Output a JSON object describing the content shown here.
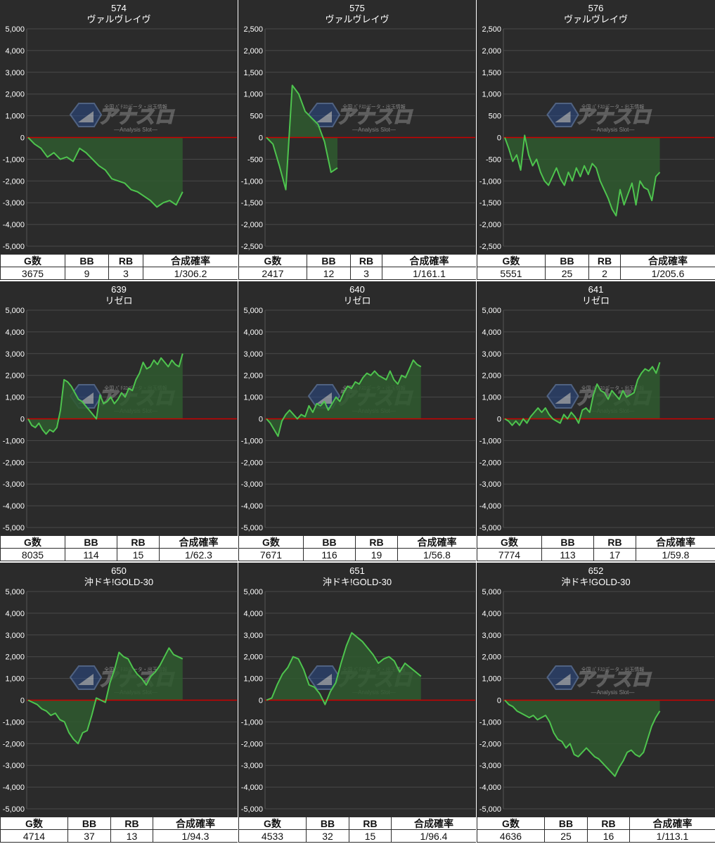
{
  "headers": [
    "G数",
    "BB",
    "RB",
    "合成確率"
  ],
  "watermark": {
    "brand": "アナスロ",
    "sub": "—Analysis Slot—",
    "top": "全国 ﾊﾟﾁｽﾛデータ・出玉情報"
  },
  "colors": {
    "background": "#2b2b2b",
    "line": "#4ec44e",
    "fill": "#2f5a2f",
    "zero_line": "#cc0000",
    "grid": "#4a4a4a"
  },
  "chart_data": [
    {
      "type": "area",
      "number": "574",
      "title": "ヴァルヴレイヴ",
      "ylim": [
        -5000,
        5000
      ],
      "yticks": [
        "5,000",
        "4,000",
        "3,000",
        "2,000",
        "1,000",
        "0",
        "-1,000",
        "-2,000",
        "-3,000",
        "-4,000",
        "-5,000"
      ],
      "values": [
        0,
        -300,
        -500,
        -900,
        -700,
        -1000,
        -900,
        -1100,
        -500,
        -700,
        -1000,
        -1300,
        -1500,
        -1900,
        -2000,
        -2100,
        -2400,
        -2500,
        -2700,
        -2900,
        -3200,
        -3000,
        -2900,
        -3100,
        -2500
      ],
      "stats": {
        "games": "3675",
        "bb": "9",
        "rb": "3",
        "prob": "1/306.2"
      }
    },
    {
      "type": "area",
      "number": "575",
      "title": "ヴァルヴレイヴ",
      "ylim": [
        -2500,
        2500
      ],
      "yticks": [
        "2,500",
        "2,000",
        "1,500",
        "1,000",
        "500",
        "0",
        "-500",
        "-1,000",
        "-1,500",
        "-2,000",
        "-2,500"
      ],
      "values": [
        0,
        -150,
        -650,
        -1200,
        1200,
        1000,
        600,
        450,
        300,
        -100,
        -800,
        -700
      ],
      "stats": {
        "games": "2417",
        "bb": "12",
        "rb": "3",
        "prob": "1/161.1"
      }
    },
    {
      "type": "area",
      "number": "576",
      "title": "ヴァルヴレイヴ",
      "ylim": [
        -2500,
        2500
      ],
      "yticks": [
        "2,500",
        "2,000",
        "1,500",
        "1,000",
        "500",
        "0",
        "-500",
        "-1,000",
        "-1,500",
        "-2,000",
        "-2,500"
      ],
      "values": [
        0,
        -250,
        -550,
        -400,
        -750,
        50,
        -400,
        -650,
        -500,
        -800,
        -1000,
        -1100,
        -900,
        -700,
        -950,
        -1100,
        -800,
        -1000,
        -700,
        -900,
        -650,
        -850,
        -600,
        -700,
        -1000,
        -1200,
        -1400,
        -1650,
        -1800,
        -1200,
        -1550,
        -1300,
        -1050,
        -1550,
        -1000,
        -1150,
        -1200,
        -1450,
        -900,
        -800
      ],
      "stats": {
        "games": "5551",
        "bb": "25",
        "rb": "2",
        "prob": "1/205.6"
      }
    },
    {
      "type": "area",
      "number": "639",
      "title": "リゼロ",
      "ylim": [
        -5000,
        5000
      ],
      "yticks": [
        "5,000",
        "4,000",
        "3,000",
        "2,000",
        "1,000",
        "0",
        "-1,000",
        "-2,000",
        "-3,000",
        "-4,000",
        "-5,000"
      ],
      "values": [
        0,
        -300,
        -400,
        -200,
        -500,
        -700,
        -500,
        -600,
        -400,
        400,
        1800,
        1700,
        1500,
        1200,
        900,
        800,
        600,
        400,
        200,
        0,
        1100,
        700,
        800,
        1000,
        700,
        900,
        1200,
        1000,
        1400,
        1300,
        1800,
        2100,
        2600,
        2300,
        2400,
        2700,
        2500,
        2800,
        2600,
        2400,
        2700,
        2500,
        2400,
        3000
      ],
      "stats": {
        "games": "8035",
        "bb": "114",
        "rb": "15",
        "prob": "1/62.3"
      }
    },
    {
      "type": "area",
      "number": "640",
      "title": "リゼロ",
      "ylim": [
        -5000,
        5000
      ],
      "yticks": [
        "5,000",
        "4,000",
        "3,000",
        "2,000",
        "1,000",
        "0",
        "-1,000",
        "-2,000",
        "-3,000",
        "-4,000",
        "-5,000"
      ],
      "values": [
        0,
        -200,
        -500,
        -800,
        -100,
        200,
        400,
        200,
        0,
        200,
        100,
        600,
        300,
        700,
        600,
        800,
        400,
        700,
        1000,
        800,
        1200,
        1500,
        1400,
        1700,
        1600,
        1900,
        2100,
        2000,
        2200,
        2000,
        1900,
        1800,
        2200,
        1800,
        1600,
        2000,
        1900,
        2300,
        2700,
        2500,
        2400
      ],
      "stats": {
        "games": "7671",
        "bb": "116",
        "rb": "19",
        "prob": "1/56.8"
      }
    },
    {
      "type": "area",
      "number": "641",
      "title": "リゼロ",
      "ylim": [
        -5000,
        5000
      ],
      "yticks": [
        "5,000",
        "4,000",
        "3,000",
        "2,000",
        "1,000",
        "0",
        "-1,000",
        "-2,000",
        "-3,000",
        "-4,000",
        "-5,000"
      ],
      "values": [
        0,
        -100,
        -300,
        -100,
        -300,
        0,
        -200,
        100,
        300,
        500,
        300,
        500,
        200,
        0,
        -100,
        -200,
        200,
        0,
        300,
        100,
        -200,
        400,
        500,
        300,
        1100,
        1600,
        1300,
        1200,
        900,
        1300,
        1100,
        900,
        1300,
        1000,
        1100,
        1200,
        1800,
        2100,
        2300,
        2200,
        2400,
        2100,
        2600
      ],
      "stats": {
        "games": "7774",
        "bb": "113",
        "rb": "17",
        "prob": "1/59.8"
      }
    },
    {
      "type": "area",
      "number": "650",
      "title": "沖ドキ!GOLD-30",
      "ylim": [
        -5000,
        5000
      ],
      "yticks": [
        "5,000",
        "4,000",
        "3,000",
        "2,000",
        "1,000",
        "0",
        "-1,000",
        "-2,000",
        "-3,000",
        "-4,000",
        "-5,000"
      ],
      "values": [
        0,
        -100,
        -200,
        -400,
        -500,
        -700,
        -600,
        -900,
        -1000,
        -1500,
        -1800,
        -2000,
        -1500,
        -1400,
        -700,
        100,
        0,
        -100,
        800,
        1400,
        2200,
        2000,
        1900,
        1500,
        1200,
        1000,
        700,
        1100,
        1300,
        1600,
        2000,
        2400,
        2100,
        2000,
        1900
      ],
      "stats": {
        "games": "4714",
        "bb": "37",
        "rb": "13",
        "prob": "1/94.3"
      }
    },
    {
      "type": "area",
      "number": "651",
      "title": "沖ドキ!GOLD-30",
      "ylim": [
        -5000,
        5000
      ],
      "yticks": [
        "5,000",
        "4,000",
        "3,000",
        "2,000",
        "1,000",
        "0",
        "-1,000",
        "-2,000",
        "-3,000",
        "-4,000",
        "-5,000"
      ],
      "values": [
        0,
        100,
        700,
        1200,
        1500,
        2000,
        1900,
        1400,
        700,
        600,
        300,
        -200,
        400,
        800,
        1700,
        2500,
        3100,
        2900,
        2700,
        2400,
        2100,
        1700,
        1900,
        2000,
        1800,
        1300,
        1700,
        1500,
        1300,
        1100
      ],
      "stats": {
        "games": "4533",
        "bb": "32",
        "rb": "15",
        "prob": "1/96.4"
      }
    },
    {
      "type": "area",
      "number": "652",
      "title": "沖ドキ!GOLD-30",
      "ylim": [
        -5000,
        5000
      ],
      "yticks": [
        "5,000",
        "4,000",
        "3,000",
        "2,000",
        "1,000",
        "0",
        "-1,000",
        "-2,000",
        "-3,000",
        "-4,000",
        "-5,000"
      ],
      "values": [
        0,
        -200,
        -300,
        -500,
        -600,
        -700,
        -800,
        -700,
        -900,
        -800,
        -700,
        -1000,
        -1500,
        -1800,
        -1900,
        -2200,
        -2000,
        -2500,
        -2600,
        -2400,
        -2200,
        -2400,
        -2600,
        -2700,
        -2900,
        -3100,
        -3300,
        -3500,
        -3100,
        -2800,
        -2400,
        -2300,
        -2500,
        -2600,
        -2400,
        -1800,
        -1200,
        -800,
        -500
      ],
      "stats": {
        "games": "4636",
        "bb": "25",
        "rb": "16",
        "prob": "1/113.1"
      }
    }
  ]
}
